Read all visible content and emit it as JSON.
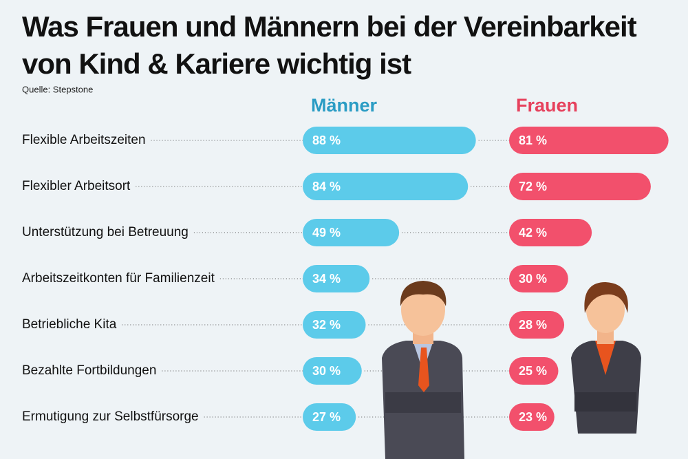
{
  "chart_data": {
    "type": "bar",
    "title_lines": [
      "Was Frauen und Männern bei der Vereinbarkeit",
      "von Kind & Kariere wichtig ist"
    ],
    "source": "Quelle: Stepstone",
    "categories": [
      "Flexible Arbeitszeiten",
      "Flexibler Arbeitsort",
      "Unterstützung bei Betreuung",
      "Arbeitszeitkonten für Familienzeit",
      "Betriebliche Kita",
      "Bezahlte Fortbildungen",
      "Ermutigung zur Selbstfürsorge"
    ],
    "series": [
      {
        "name": "Männer",
        "color": "#5ccbea",
        "values": [
          88,
          84,
          49,
          34,
          32,
          30,
          27
        ],
        "value_labels": [
          "88 %",
          "84 %",
          "49 %",
          "34 %",
          "32 %",
          "30 %",
          "27 %"
        ]
      },
      {
        "name": "Frauen",
        "color": "#f2506c",
        "values": [
          81,
          72,
          42,
          30,
          28,
          25,
          23
        ],
        "value_labels": [
          "81 %",
          "72 %",
          "42 %",
          "30 %",
          "28 %",
          "25 %",
          "23 %"
        ]
      }
    ]
  }
}
